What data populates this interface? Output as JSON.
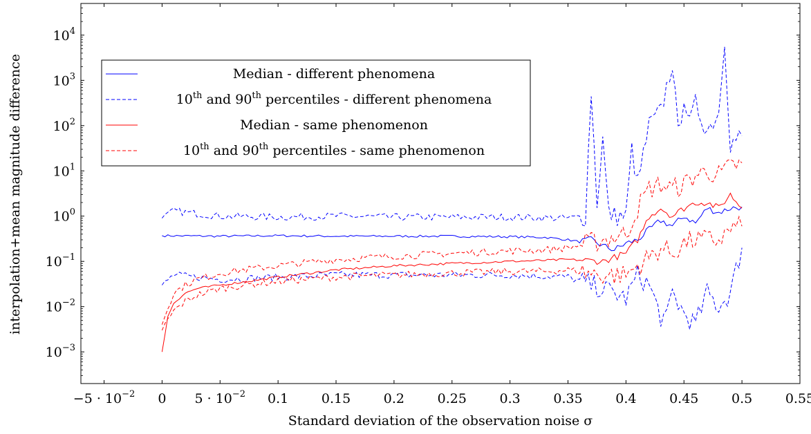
{
  "chart_data": {
    "type": "line",
    "title": "",
    "xlabel": "Standard deviation of the observation noise σ",
    "ylabel": "interpolation+mean magnitude difference",
    "xlim": [
      -0.07,
      0.55
    ],
    "ylim_log10": [
      -3.7,
      4.7
    ],
    "yscale": "log",
    "grid": false,
    "legend_position": "top-left",
    "x_ticks": [
      {
        "value": -0.05,
        "label": "−5 · 10",
        "sup": "−2"
      },
      {
        "value": 0,
        "label": "0",
        "sup": ""
      },
      {
        "value": 0.05,
        "label": "5 · 10",
        "sup": "−2"
      },
      {
        "value": 0.1,
        "label": "0.1",
        "sup": ""
      },
      {
        "value": 0.15,
        "label": "0.15",
        "sup": ""
      },
      {
        "value": 0.2,
        "label": "0.2",
        "sup": ""
      },
      {
        "value": 0.25,
        "label": "0.25",
        "sup": ""
      },
      {
        "value": 0.3,
        "label": "0.3",
        "sup": ""
      },
      {
        "value": 0.35,
        "label": "0.35",
        "sup": ""
      },
      {
        "value": 0.4,
        "label": "0.4",
        "sup": ""
      },
      {
        "value": 0.45,
        "label": "0.45",
        "sup": ""
      },
      {
        "value": 0.5,
        "label": "0.5",
        "sup": ""
      },
      {
        "value": 0.55,
        "label": "0.55",
        "sup": ""
      }
    ],
    "y_ticks": [
      {
        "exp": -3,
        "label": "10",
        "sup": "−3"
      },
      {
        "exp": -2,
        "label": "10",
        "sup": "−2"
      },
      {
        "exp": -1,
        "label": "10",
        "sup": "−1"
      },
      {
        "exp": 0,
        "label": "10",
        "sup": "0"
      },
      {
        "exp": 1,
        "label": "10",
        "sup": "1"
      },
      {
        "exp": 2,
        "label": "10",
        "sup": "2"
      },
      {
        "exp": 3,
        "label": "10",
        "sup": "3"
      },
      {
        "exp": 4,
        "label": "10",
        "sup": "4"
      }
    ],
    "legend": [
      {
        "parts": [
          {
            "t": "Median - different phenomena"
          }
        ],
        "color": "#0000ff",
        "dashed": false
      },
      {
        "parts": [
          {
            "t": "10"
          },
          {
            "t": "th",
            "sup": true
          },
          {
            "t": " and 90"
          },
          {
            "t": "th",
            "sup": true
          },
          {
            "t": " percentiles - different phenomena"
          }
        ],
        "color": "#0000ff",
        "dashed": true
      },
      {
        "parts": [
          {
            "t": "Median - same phenomenon"
          }
        ],
        "color": "#ff0000",
        "dashed": false
      },
      {
        "parts": [
          {
            "t": "10"
          },
          {
            "t": "th",
            "sup": true
          },
          {
            "t": " and 90"
          },
          {
            "t": "th",
            "sup": true
          },
          {
            "t": " percentiles - same phenomenon"
          }
        ],
        "color": "#ff0000",
        "dashed": true
      }
    ],
    "series": [
      {
        "color": "#0000ff",
        "dashed": false,
        "x": [
          0,
          0.05,
          0.1,
          0.15,
          0.2,
          0.25,
          0.3,
          0.33,
          0.35,
          0.36,
          0.37,
          0.38,
          0.39,
          0.4,
          0.41,
          0.42,
          0.43,
          0.44,
          0.45,
          0.46,
          0.47,
          0.48,
          0.49,
          0.5
        ],
        "y": [
          0.37,
          0.36,
          0.37,
          0.36,
          0.36,
          0.36,
          0.35,
          0.34,
          0.3,
          0.27,
          0.3,
          0.22,
          0.18,
          0.25,
          0.3,
          0.5,
          0.8,
          0.6,
          1.0,
          0.7,
          1.5,
          1.2,
          1.5,
          1.6
        ]
      },
      {
        "color": "#0000ff",
        "dashed": true,
        "x": [
          0,
          0.01,
          0.05,
          0.1,
          0.15,
          0.2,
          0.25,
          0.3,
          0.35,
          0.365,
          0.37,
          0.375,
          0.38,
          0.385,
          0.39,
          0.4,
          0.405,
          0.41,
          0.42,
          0.43,
          0.44,
          0.445,
          0.45,
          0.455,
          0.46,
          0.47,
          0.48,
          0.485,
          0.49,
          0.5
        ],
        "y": [
          0.9,
          1.3,
          1.0,
          0.95,
          1.0,
          0.95,
          0.95,
          0.95,
          0.9,
          1.0,
          600,
          2,
          50,
          1.2,
          1.0,
          1.0,
          30,
          5,
          100,
          200,
          2500,
          60,
          500,
          100,
          300,
          80,
          200,
          9000,
          40,
          60
        ]
      },
      {
        "color": "#0000ff",
        "dashed": true,
        "x": [
          0,
          0.01,
          0.05,
          0.1,
          0.15,
          0.2,
          0.25,
          0.3,
          0.35,
          0.37,
          0.38,
          0.39,
          0.4,
          0.41,
          0.42,
          0.43,
          0.435,
          0.44,
          0.45,
          0.46,
          0.47,
          0.48,
          0.49,
          0.5
        ],
        "y": [
          0.03,
          0.05,
          0.04,
          0.045,
          0.05,
          0.05,
          0.05,
          0.05,
          0.045,
          0.03,
          0.025,
          0.02,
          0.015,
          0.05,
          0.03,
          0.006,
          0.005,
          0.02,
          0.007,
          0.004,
          0.02,
          0.01,
          0.02,
          0.2
        ]
      },
      {
        "color": "#ff0000",
        "dashed": false,
        "x": [
          0,
          0.005,
          0.01,
          0.02,
          0.03,
          0.05,
          0.07,
          0.1,
          0.15,
          0.2,
          0.25,
          0.3,
          0.33,
          0.35,
          0.38,
          0.4,
          0.41,
          0.42,
          0.43,
          0.44,
          0.45,
          0.46,
          0.47,
          0.48,
          0.49,
          0.5
        ],
        "y": [
          0.001,
          0.006,
          0.012,
          0.02,
          0.025,
          0.03,
          0.035,
          0.045,
          0.065,
          0.08,
          0.09,
          0.1,
          0.105,
          0.11,
          0.1,
          0.15,
          0.3,
          1.0,
          1.5,
          1.0,
          1.5,
          2.0,
          2.0,
          1.5,
          3.0,
          1.5
        ]
      },
      {
        "color": "#ff0000",
        "dashed": true,
        "x": [
          0,
          0.005,
          0.01,
          0.02,
          0.03,
          0.05,
          0.07,
          0.1,
          0.15,
          0.2,
          0.25,
          0.3,
          0.33,
          0.35,
          0.38,
          0.4,
          0.41,
          0.42,
          0.43,
          0.44,
          0.45,
          0.46,
          0.47,
          0.48,
          0.49,
          0.5
        ],
        "y": [
          0.004,
          0.01,
          0.02,
          0.03,
          0.04,
          0.055,
          0.065,
          0.08,
          0.11,
          0.13,
          0.15,
          0.17,
          0.18,
          0.2,
          0.3,
          0.4,
          1.5,
          4.0,
          5.0,
          4.0,
          5.0,
          8.0,
          10.0,
          8.0,
          12.0,
          15.0
        ]
      },
      {
        "color": "#ff0000",
        "dashed": true,
        "x": [
          0,
          0.005,
          0.01,
          0.02,
          0.03,
          0.05,
          0.07,
          0.1,
          0.15,
          0.2,
          0.25,
          0.3,
          0.33,
          0.35,
          0.38,
          0.4,
          0.41,
          0.42,
          0.43,
          0.44,
          0.45,
          0.46,
          0.47,
          0.48,
          0.49,
          0.5
        ],
        "y": [
          0.003,
          0.005,
          0.008,
          0.013,
          0.018,
          0.025,
          0.03,
          0.036,
          0.045,
          0.05,
          0.055,
          0.06,
          0.06,
          0.065,
          0.05,
          0.05,
          0.08,
          0.12,
          0.2,
          0.15,
          0.25,
          0.3,
          0.3,
          0.3,
          0.5,
          0.6
        ]
      }
    ]
  }
}
